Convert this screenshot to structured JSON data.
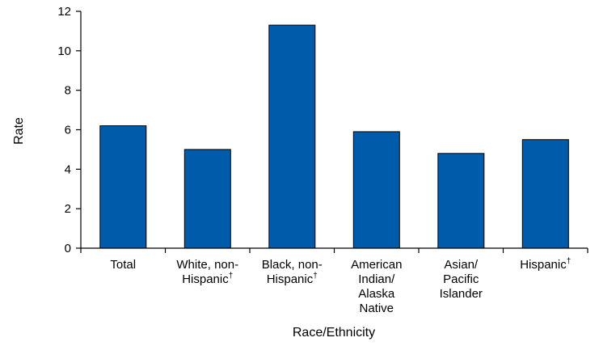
{
  "chart_data": {
    "type": "bar",
    "categories": [
      "Total",
      "White, non-Hispanic†",
      "Black, non-Hispanic†",
      "American Indian/ Alaska Native",
      "Asian/ Pacific Islander",
      "Hispanic†"
    ],
    "category_lines": [
      [
        "Total"
      ],
      [
        "White, non-",
        "Hispanic†"
      ],
      [
        "Black, non-",
        "Hispanic†"
      ],
      [
        "American",
        "Indian/",
        "Alaska",
        "Native"
      ],
      [
        "Asian/",
        "Pacific",
        "Islander"
      ],
      [
        "Hispanic†"
      ]
    ],
    "values": [
      6.2,
      5.0,
      11.3,
      5.9,
      4.8,
      5.5
    ],
    "title": "",
    "xlabel": "Race/Ethnicity",
    "ylabel": "Rate",
    "ylim": [
      0,
      12
    ],
    "yticks": [
      0,
      2,
      4,
      6,
      8,
      10,
      12
    ],
    "grid": false,
    "legend": "none",
    "bar_color": "#005BAA",
    "bar_outline_color": "#000000"
  }
}
